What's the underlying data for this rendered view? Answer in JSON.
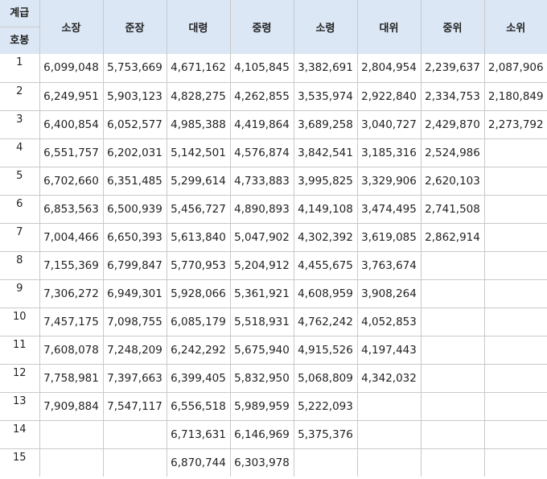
{
  "header": {
    "corner_top": "계급",
    "corner_bottom": "호봉",
    "ranks": [
      "소장",
      "준장",
      "대령",
      "중령",
      "소령",
      "대위",
      "중위",
      "소위"
    ]
  },
  "rows": [
    {
      "step": "1",
      "values": [
        "6,099,048",
        "5,753,669",
        "4,671,162",
        "4,105,845",
        "3,382,691",
        "2,804,954",
        "2,239,637",
        "2,087,906"
      ]
    },
    {
      "step": "2",
      "values": [
        "6,249,951",
        "5,903,123",
        "4,828,275",
        "4,262,855",
        "3,535,974",
        "2,922,840",
        "2,334,753",
        "2,180,849"
      ]
    },
    {
      "step": "3",
      "values": [
        "6,400,854",
        "6,052,577",
        "4,985,388",
        "4,419,864",
        "3,689,258",
        "3,040,727",
        "2,429,870",
        "2,273,792"
      ]
    },
    {
      "step": "4",
      "values": [
        "6,551,757",
        "6,202,031",
        "5,142,501",
        "4,576,874",
        "3,842,541",
        "3,185,316",
        "2,524,986",
        ""
      ]
    },
    {
      "step": "5",
      "values": [
        "6,702,660",
        "6,351,485",
        "5,299,614",
        "4,733,883",
        "3,995,825",
        "3,329,906",
        "2,620,103",
        ""
      ]
    },
    {
      "step": "6",
      "values": [
        "6,853,563",
        "6,500,939",
        "5,456,727",
        "4,890,893",
        "4,149,108",
        "3,474,495",
        "2,741,508",
        ""
      ]
    },
    {
      "step": "7",
      "values": [
        "7,004,466",
        "6,650,393",
        "5,613,840",
        "5,047,902",
        "4,302,392",
        "3,619,085",
        "2,862,914",
        ""
      ]
    },
    {
      "step": "8",
      "values": [
        "7,155,369",
        "6,799,847",
        "5,770,953",
        "5,204,912",
        "4,455,675",
        "3,763,674",
        "",
        ""
      ]
    },
    {
      "step": "9",
      "values": [
        "7,306,272",
        "6,949,301",
        "5,928,066",
        "5,361,921",
        "4,608,959",
        "3,908,264",
        "",
        ""
      ]
    },
    {
      "step": "10",
      "values": [
        "7,457,175",
        "7,098,755",
        "6,085,179",
        "5,518,931",
        "4,762,242",
        "4,052,853",
        "",
        ""
      ]
    },
    {
      "step": "11",
      "values": [
        "7,608,078",
        "7,248,209",
        "6,242,292",
        "5,675,940",
        "4,915,526",
        "4,197,443",
        "",
        ""
      ]
    },
    {
      "step": "12",
      "values": [
        "7,758,981",
        "7,397,663",
        "6,399,405",
        "5,832,950",
        "5,068,809",
        "4,342,032",
        "",
        ""
      ]
    },
    {
      "step": "13",
      "values": [
        "7,909,884",
        "7,547,117",
        "6,556,518",
        "5,989,959",
        "5,222,093",
        "",
        "",
        ""
      ]
    },
    {
      "step": "14",
      "values": [
        "",
        "",
        "6,713,631",
        "6,146,969",
        "5,375,376",
        "",
        "",
        ""
      ]
    },
    {
      "step": "15",
      "values": [
        "",
        "",
        "6,870,744",
        "6,303,978",
        "",
        "",
        "",
        ""
      ]
    }
  ]
}
